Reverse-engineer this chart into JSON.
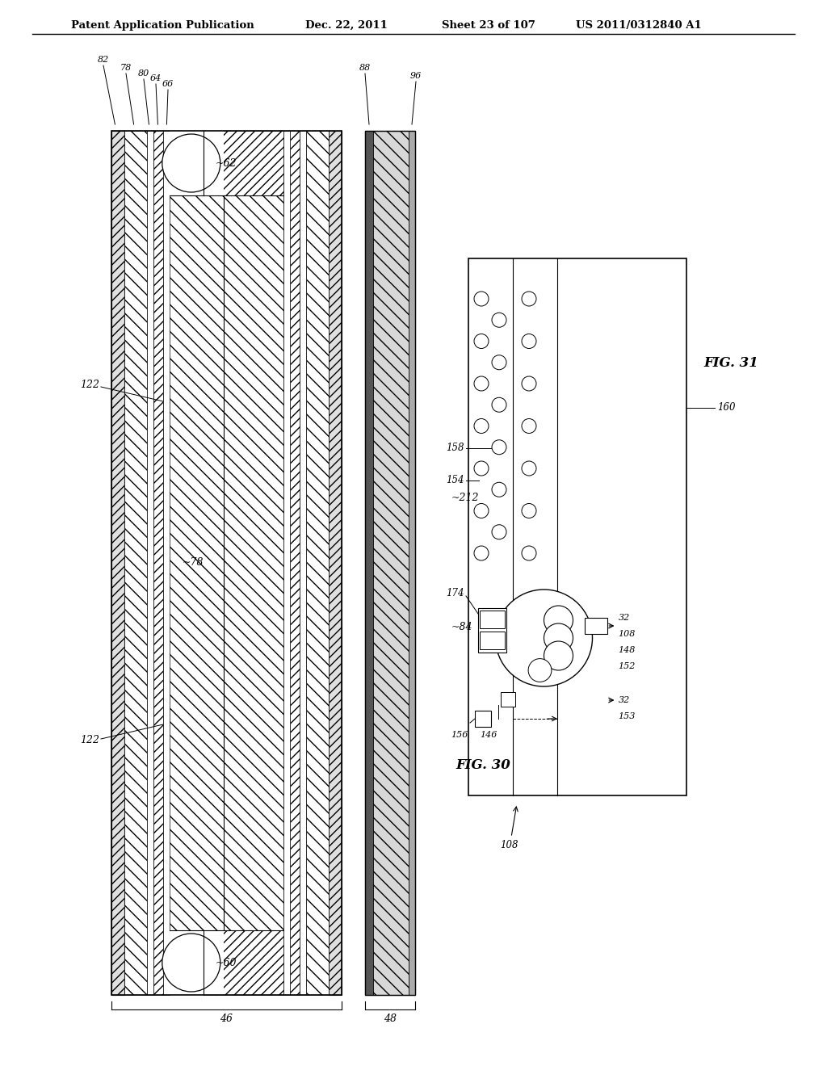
{
  "bg_color": "#ffffff",
  "header_text": "Patent Application Publication",
  "header_date": "Dec. 22, 2011",
  "header_sheet": "Sheet 23 of 107",
  "header_patent": "US 2011/0312840 A1",
  "fig30_label": "FIG. 30",
  "fig31_label": "FIG. 31"
}
